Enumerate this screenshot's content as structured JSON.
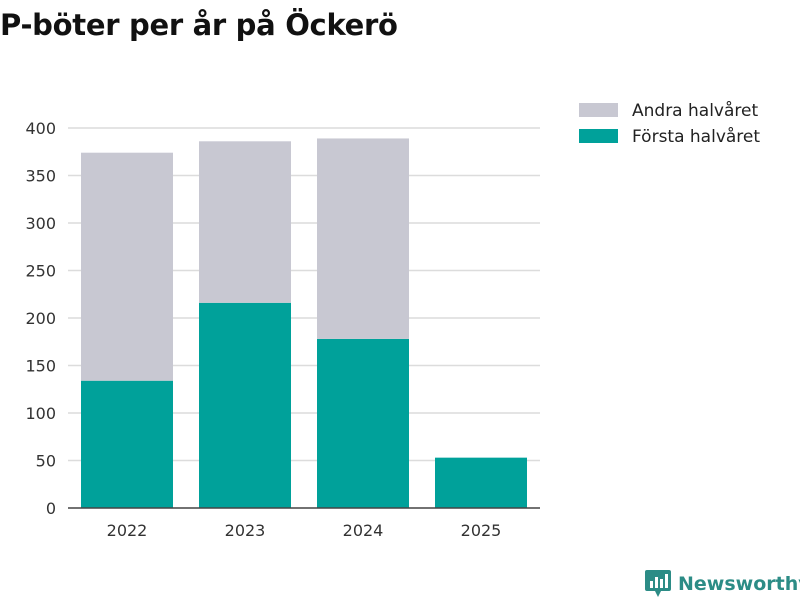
{
  "chart_data": {
    "type": "bar",
    "stacked": true,
    "title": "P-böter per år på Öckerö",
    "categories": [
      "2022",
      "2023",
      "2024",
      "2025"
    ],
    "series": [
      {
        "name": "Första halvåret",
        "color": "#00a19a",
        "values": [
          134,
          216,
          178,
          53
        ]
      },
      {
        "name": "Andra halvåret",
        "color": "#c8c8d2",
        "values": [
          240,
          170,
          211,
          0
        ]
      }
    ],
    "yticks": [
      "0",
      "50",
      "100",
      "150",
      "200",
      "250",
      "300",
      "350",
      "400"
    ],
    "ylim": [
      0,
      400
    ],
    "xlabel": "",
    "ylabel": "",
    "grid": true,
    "legend_position": "top-right"
  },
  "brand": {
    "name": "Newsworthy",
    "logo_icon": "bar-chart-badge-icon"
  }
}
